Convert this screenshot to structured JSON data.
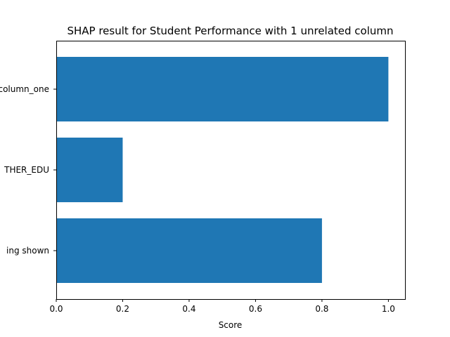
{
  "chart_data": {
    "type": "bar",
    "orientation": "horizontal",
    "title": "SHAP result for Student Performance with 1 unrelated column",
    "xlabel": "Score",
    "ylabel": "",
    "categories": [
      "column_one",
      "THER_EDU",
      "ing shown"
    ],
    "values": [
      1.0,
      0.2,
      0.8
    ],
    "xlim": [
      0,
      1.05
    ],
    "xticks": [
      0.0,
      0.2,
      0.4,
      0.6,
      0.8,
      1.0
    ],
    "xtick_labels": [
      "0.0",
      "0.2",
      "0.4",
      "0.6",
      "0.8",
      "1.0"
    ],
    "grid": false,
    "bar_color": "#1f77b4"
  }
}
